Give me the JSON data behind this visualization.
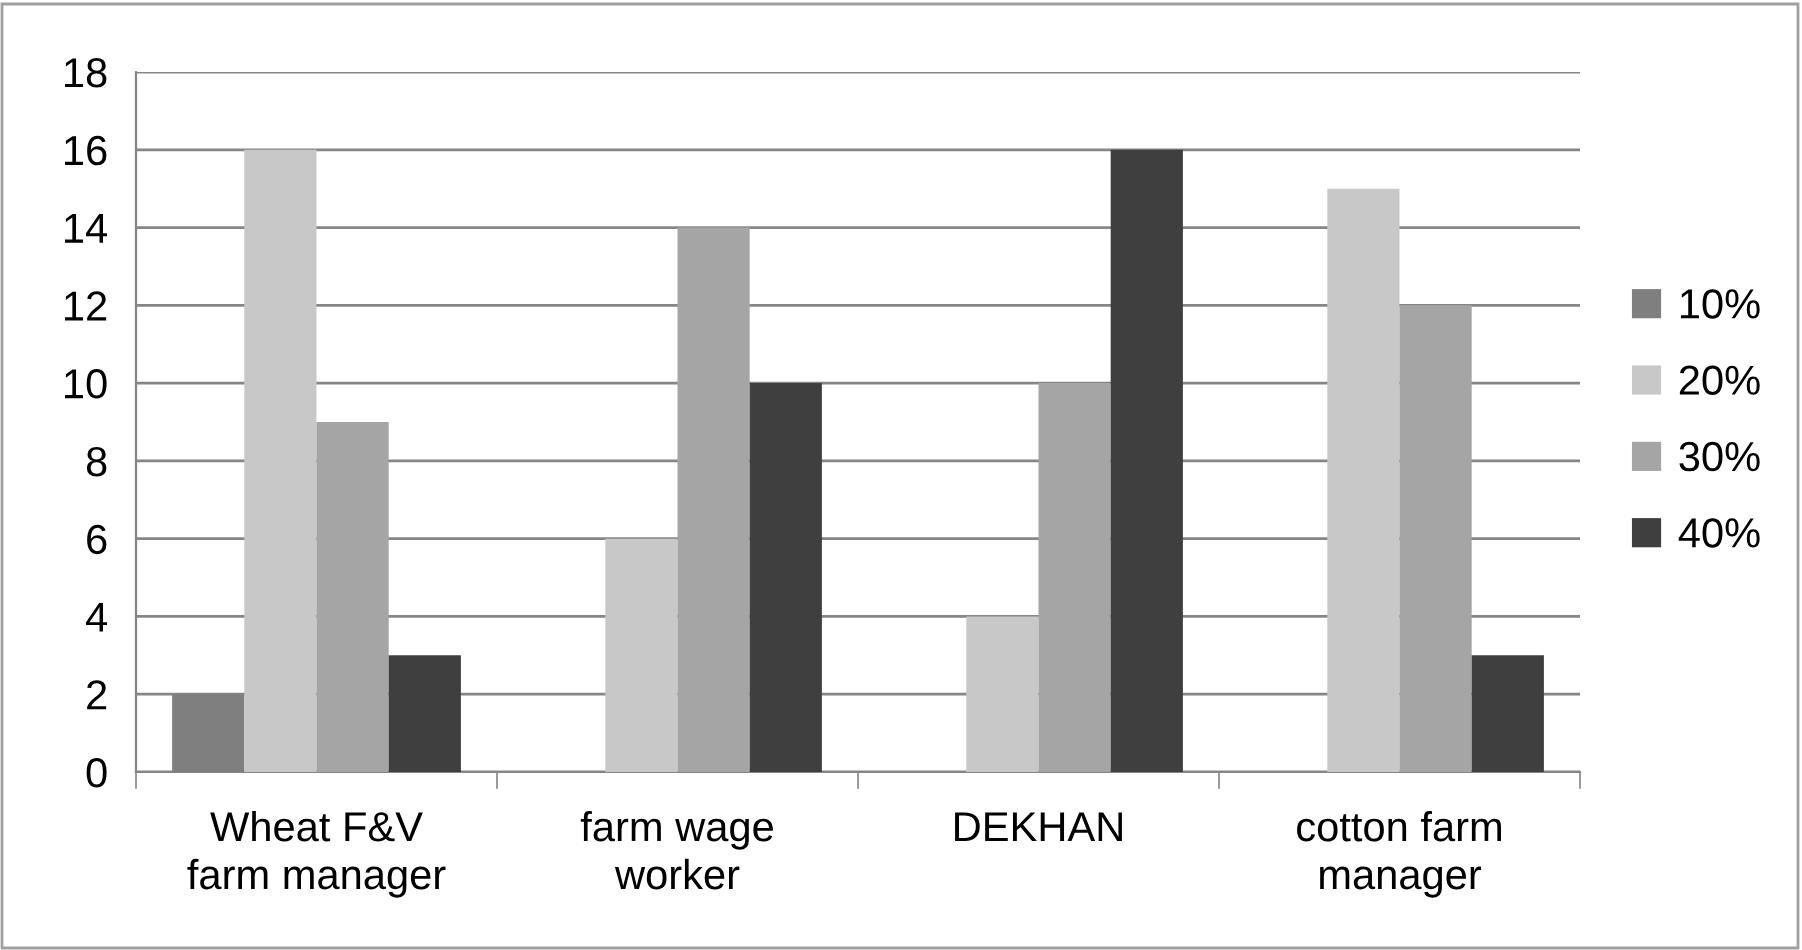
{
  "chart_data": {
    "type": "bar",
    "categories": [
      "Wheat F&V\nfarm manager",
      "farm wage\nworker",
      "DEKHAN",
      "cotton farm\nmanager"
    ],
    "series": [
      {
        "name": "10%",
        "color": "#7f7f7f",
        "values": [
          2,
          0,
          0,
          0
        ]
      },
      {
        "name": "20%",
        "color": "#c8c8c8",
        "values": [
          16,
          6,
          4,
          15
        ]
      },
      {
        "name": "30%",
        "color": "#a5a5a5",
        "values": [
          9,
          14,
          10,
          12
        ]
      },
      {
        "name": "40%",
        "color": "#3f3f3f",
        "values": [
          3,
          10,
          16,
          3
        ]
      }
    ],
    "ylim": [
      0,
      18
    ],
    "yticks": [
      0,
      2,
      4,
      6,
      8,
      10,
      12,
      14,
      16,
      18
    ],
    "grid": "y",
    "legend": "right"
  }
}
